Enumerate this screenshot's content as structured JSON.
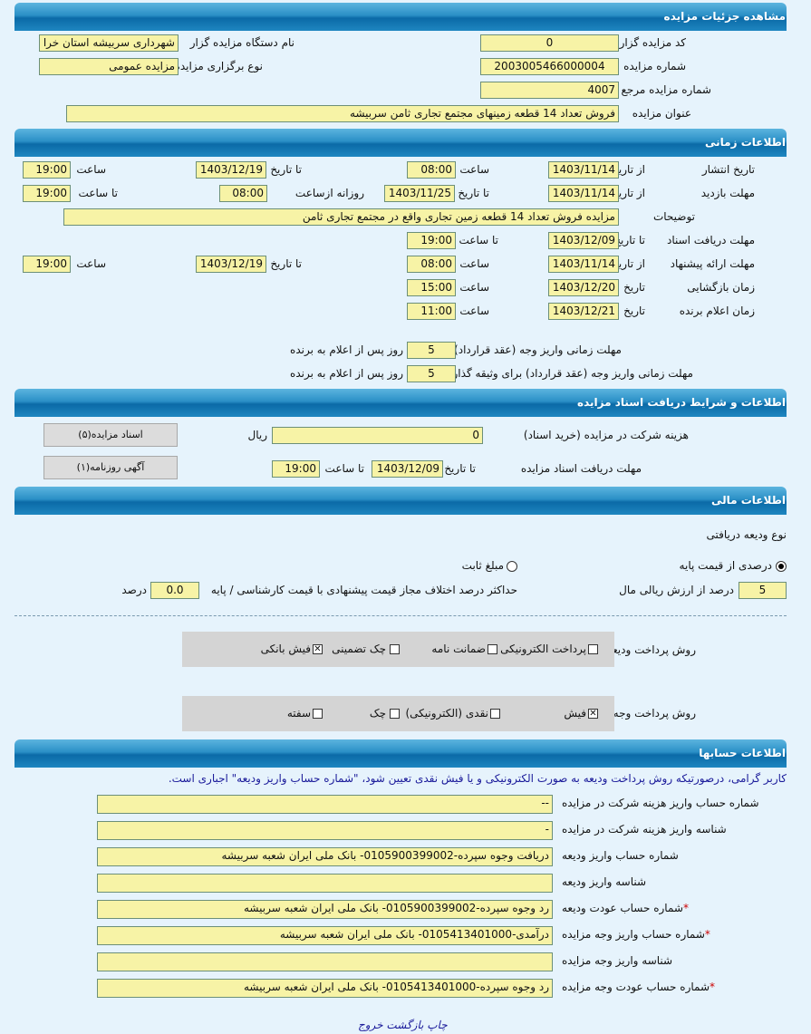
{
  "sections": {
    "details": "مشاهده جزئیات مزایده",
    "timing": "اطلاعات زمانی",
    "docs": "اطلاعات و شرایط دریافت اسناد مزایده",
    "financial": "اطلاعات مالی",
    "accounts": "اطلاعات حسابها"
  },
  "details": {
    "code_label": "کد مزایده گزار",
    "code": "0",
    "org_label": "نام دستگاه مزایده گزار",
    "org": "شهرداری سربیشه استان خرا",
    "number_label": "شماره مزایده",
    "number": "2003005466000004",
    "type_label": "نوع برگزاری مزایده",
    "type": "مزایده عمومی",
    "ref_label": "شماره مزایده مرجع",
    "ref": "4007",
    "title_label": "عنوان مزایده",
    "title": "فروش تعداد 14 قطعه زمینهای  مجتمع تجاری ثامن سربیشه"
  },
  "labels": {
    "from_date": "از تاریخ",
    "to_date": "تا تاریخ",
    "time": "ساعت",
    "to_time": "تا ساعت",
    "date": "تاریخ",
    "daily_from": "روزانه ازساعت"
  },
  "timing": {
    "publish": {
      "label": "تاریخ انتشار",
      "from_date": "1403/11/14",
      "from_time": "08:00",
      "to_date": "1403/12/19",
      "to_time": "19:00"
    },
    "visit": {
      "label": "مهلت بازدید",
      "from_date": "1403/11/14",
      "to_date": "1403/11/25",
      "daily_from": "08:00",
      "to_time": "19:00"
    },
    "desc": {
      "label": "توضیحات",
      "value": "مزایده فروش تعداد 14 قطعه زمین تجاری واقع در مجتمع تجاری ثامن"
    },
    "doc_deadline": {
      "label": "مهلت دریافت اسناد",
      "to_date": "1403/12/09",
      "to_time": "19:00"
    },
    "offer": {
      "label": "مهلت ارائه پیشنهاد",
      "from_date": "1403/11/14",
      "from_time": "08:00",
      "to_date": "1403/12/19",
      "to_time": "19:00"
    },
    "opening": {
      "label": "زمان بازگشایی",
      "date": "1403/12/20",
      "time": "15:00"
    },
    "winner": {
      "label": "زمان اعلام برنده",
      "date": "1403/12/21",
      "time": "11:00"
    },
    "pay1": {
      "label": "مهلت زمانی واریز وجه (عقد قرارداد)",
      "value": "5",
      "suffix": "روز پس از اعلام به برنده"
    },
    "pay2": {
      "label": "مهلت زمانی واریز وجه (عقد قرارداد) برای وثیقه گذار",
      "value": "5",
      "suffix": "روز پس از اعلام به برنده"
    }
  },
  "docs": {
    "fee_label": "هزینه شرکت در مزایده (خرید اسناد)",
    "fee": "0",
    "currency": "ریال",
    "deadline_label": "مهلت دریافت اسناد مزایده",
    "to_date": "1403/12/09",
    "to_time": "19:00",
    "docs_button": "اسناد مزایده(۵)",
    "ad_button": "آگهی روزنامه(۱)"
  },
  "financial": {
    "deposit_type_label": "نوع ودیعه دریافتی",
    "radio_percent": "درصدی از قیمت پایه",
    "radio_fixed": "مبلغ ثابت",
    "selected": "percent",
    "percent": "5",
    "percent_suffix": "درصد از ارزش ریالی مال",
    "max_diff_label": "حداکثر درصد اختلاف مجاز قیمت پیشنهادی با قیمت کارشناسی / پایه",
    "max_diff": "0.0",
    "max_diff_suffix": "درصد",
    "deposit_method_label": "روش پرداخت ودیعه",
    "deposit_methods": [
      {
        "label": "پرداخت الکترونیکی",
        "checked": false
      },
      {
        "label": "ضمانت نامه",
        "checked": false
      },
      {
        "label": "چک تضمینی",
        "checked": false
      },
      {
        "label": "فیش بانکی",
        "checked": true
      }
    ],
    "payment_method_label": "روش پرداخت وجه مزایده",
    "payment_methods": [
      {
        "label": "فیش",
        "checked": true
      },
      {
        "label": "نقدی (الکترونیکی)",
        "checked": false
      },
      {
        "label": "چک",
        "checked": false
      },
      {
        "label": "سفته",
        "checked": false
      }
    ]
  },
  "accounts": {
    "note": "کاربر گرامی، درصورتیکه روش پرداخت ودیعه به صورت الکترونیکی و یا فیش نقدی تعیین شود، \"شماره حساب واریز ودیعه\" اجباری است.",
    "rows": [
      {
        "label": "شماره حساب واریز هزینه شرکت در مزایده",
        "value": "--",
        "required": false
      },
      {
        "label": "شناسه واریز هزینه شرکت در مزایده",
        "value": "-",
        "required": false
      },
      {
        "label": "شماره حساب واریز ودیعه",
        "value": "دریافت وجوه سپرده-0105900399002- بانک ملی ایران شعبه سربیشه",
        "required": false
      },
      {
        "label": "شناسه واریز ودیعه",
        "value": "",
        "required": false
      },
      {
        "label": "شماره حساب عودت ودیعه",
        "value": "رد وجوه سپرده-0105900399002- بانک ملی ایران شعبه سربیشه",
        "required": true
      },
      {
        "label": "شماره حساب واریز وجه مزایده",
        "value": "درآمدی-0105413401000- بانک ملی ایران شعبه سربیشه",
        "required": true
      },
      {
        "label": "شناسه واریز وجه مزایده",
        "value": "",
        "required": false
      },
      {
        "label": "شماره حساب عودت وجه مزایده",
        "value": "رد وجوه سپرده-0105413401000- بانک ملی ایران شعبه سربیشه",
        "required": true
      }
    ]
  },
  "footer": {
    "print": "چاپ",
    "back": "بازگشت",
    "exit": "خروج"
  }
}
